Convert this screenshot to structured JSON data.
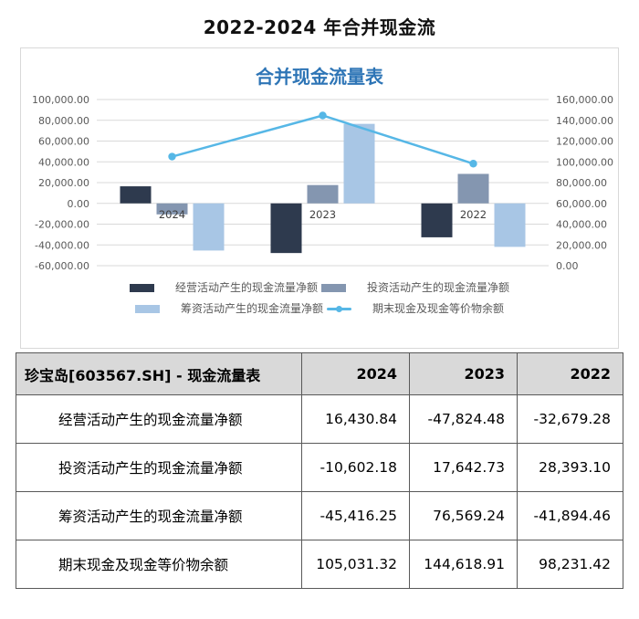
{
  "page": {
    "title": "2022-2024 年合并现金流"
  },
  "chart": {
    "title": "合并现金流量表",
    "title_color": "#2E75B6",
    "panel_border_color": "#d9d9d9",
    "grid_color": "#d9d9d9",
    "axis_label_color": "#595959",
    "category_label_color": "#404040"
  },
  "chart_data": {
    "type": "bar",
    "title": "合并现金流量表",
    "categories": [
      "2024",
      "2023",
      "2022"
    ],
    "series": [
      {
        "name": "经营活动产生的现金流量净额",
        "type": "bar",
        "axis": "left",
        "color": "#2E3A4E",
        "values": [
          16430.84,
          -47824.48,
          -32679.28
        ]
      },
      {
        "name": "投资活动产生的现金流量净额",
        "type": "bar",
        "axis": "left",
        "color": "#8496B0",
        "values": [
          -10602.18,
          17642.73,
          28393.1
        ]
      },
      {
        "name": "筹资活动产生的现金流量净额",
        "type": "bar",
        "axis": "left",
        "color": "#A8C6E5",
        "values": [
          -45416.25,
          76569.24,
          -41894.46
        ]
      },
      {
        "name": "期末现金及现金等价物余额",
        "type": "line",
        "axis": "right",
        "color": "#56B7E6",
        "values": [
          105031.32,
          144618.91,
          98231.42
        ]
      }
    ],
    "left_axis": {
      "min": -60000,
      "max": 100000,
      "step": 20000,
      "ticks": [
        "100,000.00",
        "80,000.00",
        "60,000.00",
        "40,000.00",
        "20,000.00",
        "0.00",
        "-20,000.00",
        "-40,000.00",
        "-60,000.00"
      ]
    },
    "right_axis": {
      "min": 0,
      "max": 160000,
      "step": 20000,
      "ticks": [
        "160,000.00",
        "140,000.00",
        "120,000.00",
        "100,000.00",
        "80,000.00",
        "60,000.00",
        "40,000.00",
        "20,000.00",
        "0.00"
      ]
    },
    "grid": true,
    "legend_position": "bottom"
  },
  "table": {
    "header": {
      "label": "珍宝岛[603567.SH] - 现金流量表",
      "columns": [
        "2024",
        "2023",
        "2022"
      ]
    },
    "rows": [
      {
        "label": "经营活动产生的现金流量净额",
        "values": [
          "16,430.84",
          "-47,824.48",
          "-32,679.28"
        ]
      },
      {
        "label": "投资活动产生的现金流量净额",
        "values": [
          "-10,602.18",
          "17,642.73",
          "28,393.10"
        ]
      },
      {
        "label": "筹资活动产生的现金流量净额",
        "values": [
          "-45,416.25",
          "76,569.24",
          "-41,894.46"
        ]
      },
      {
        "label": "期末现金及现金等价物余额",
        "values": [
          "105,031.32",
          "144,618.91",
          "98,231.42"
        ]
      }
    ]
  }
}
